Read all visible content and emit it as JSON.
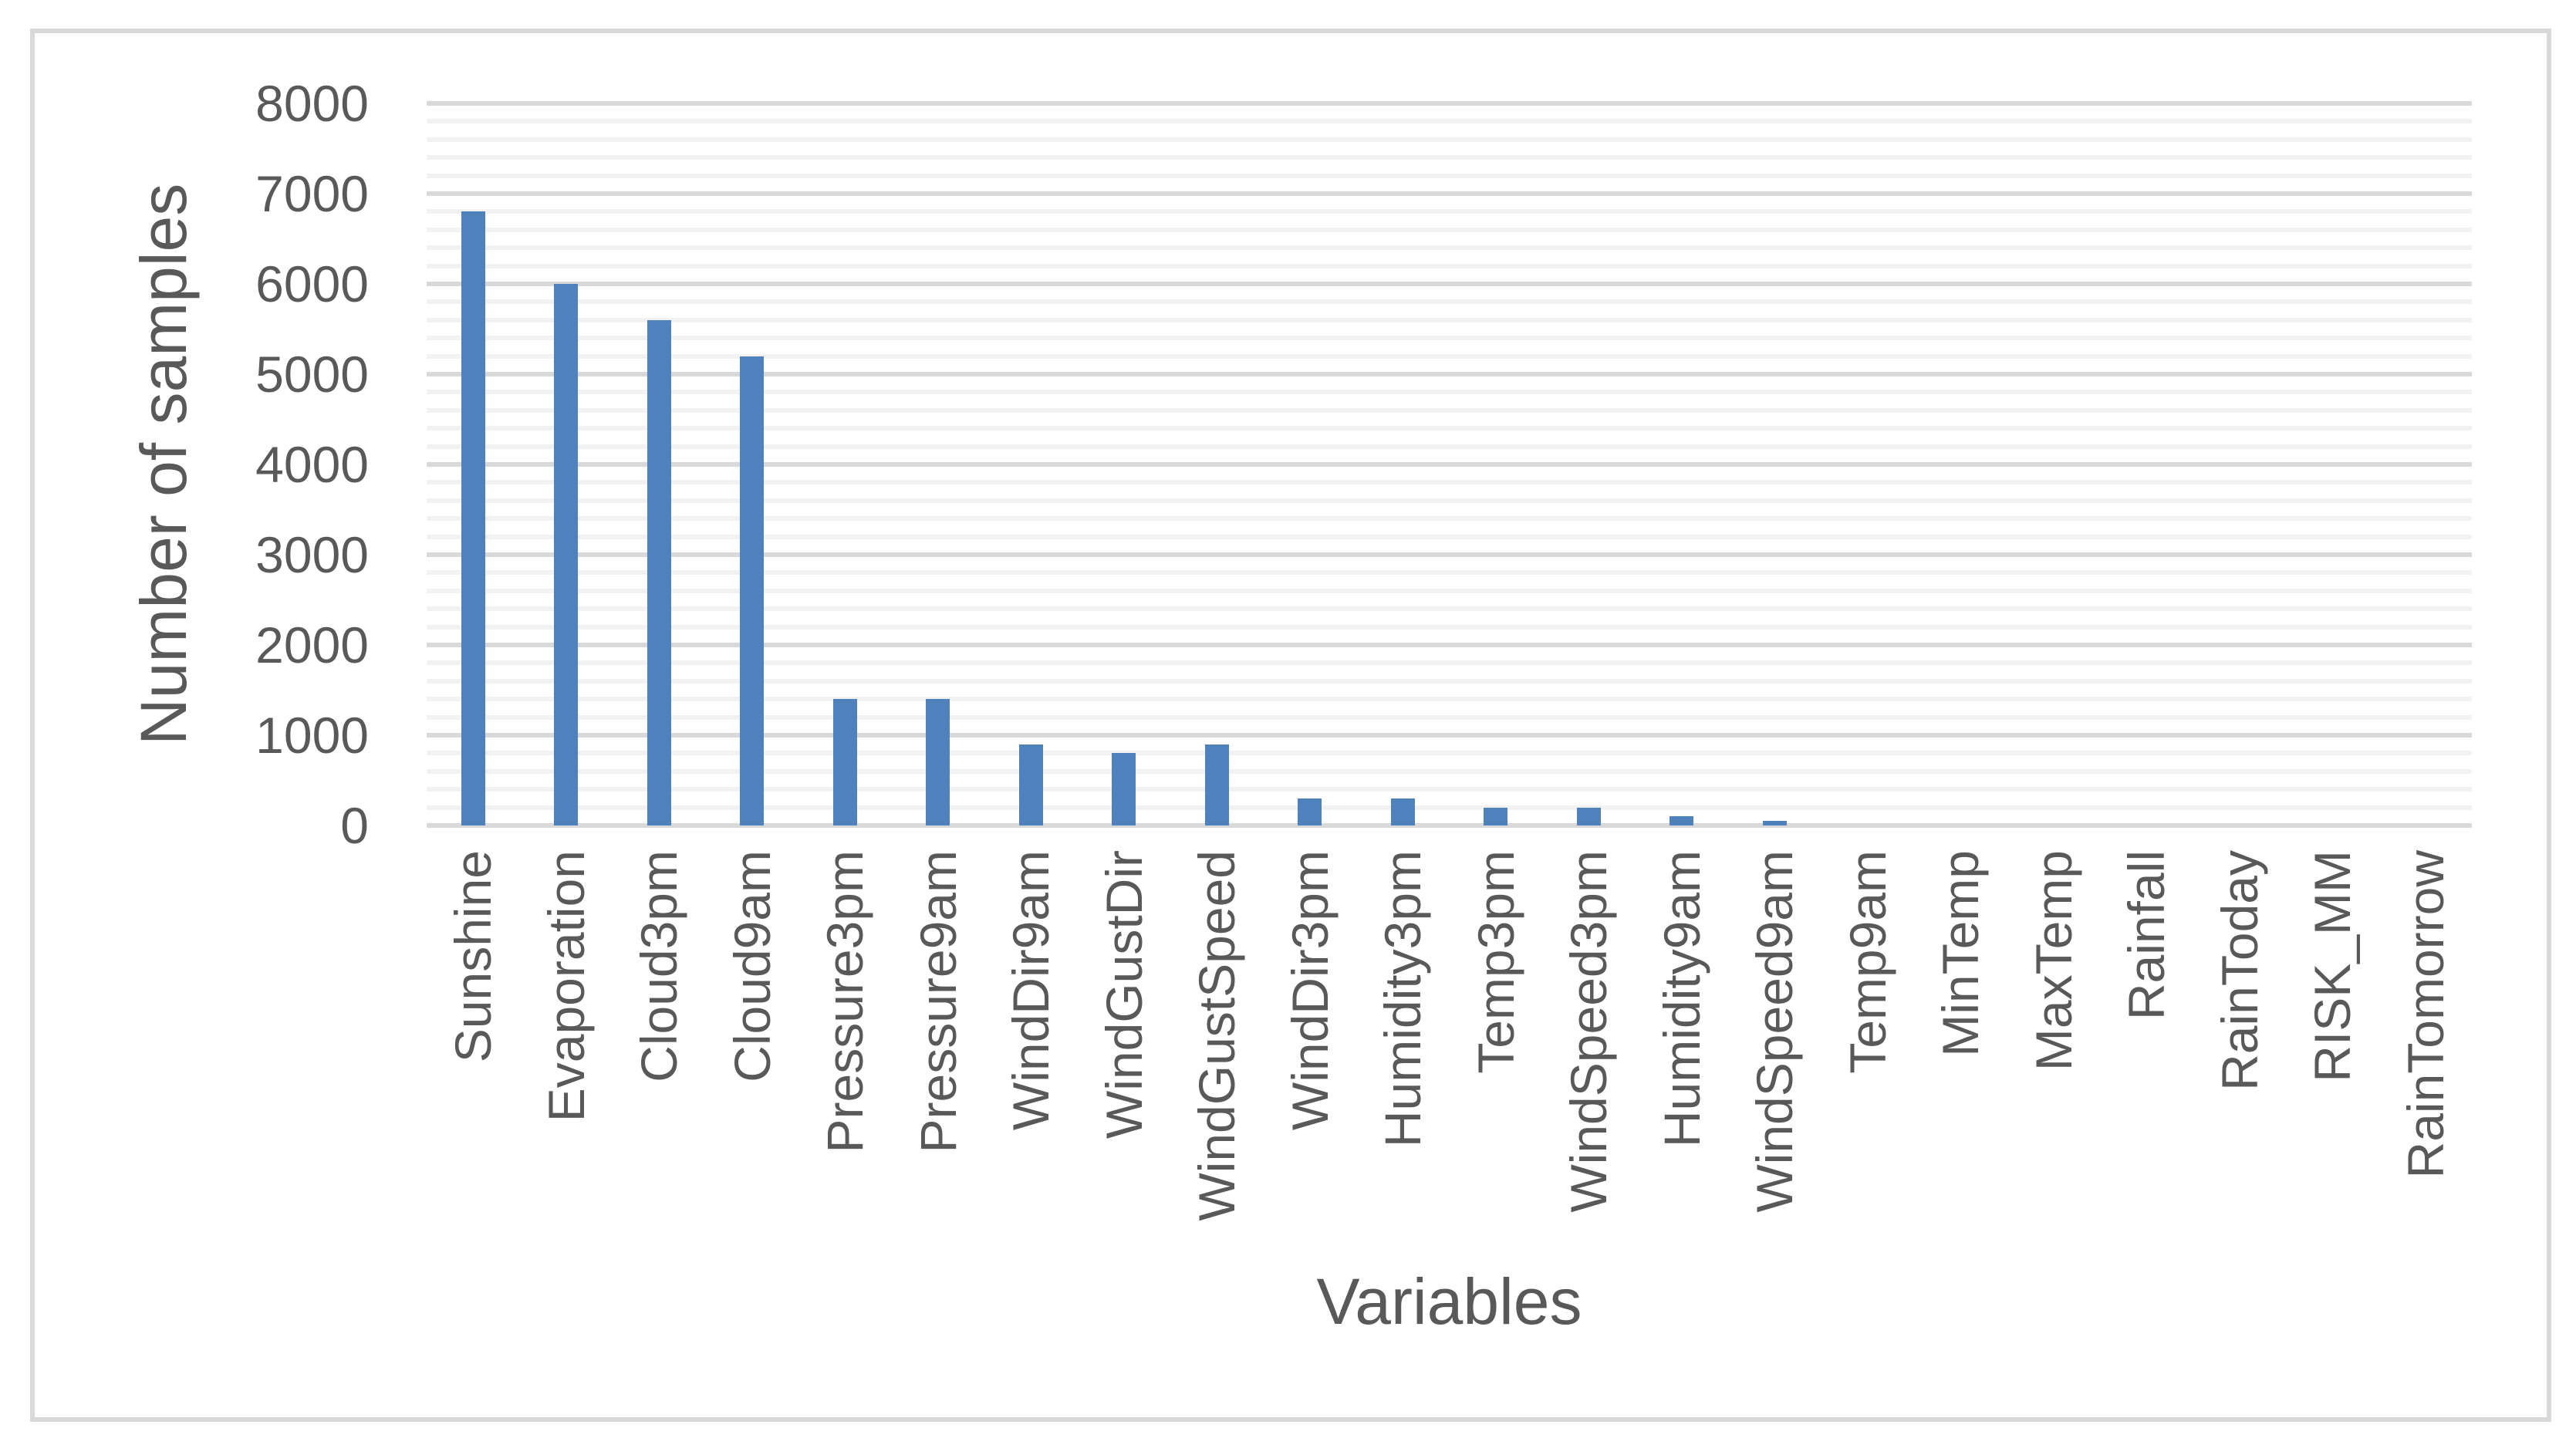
{
  "figure": {
    "background": "#FFFFFF",
    "border_color": "#D9D9D9"
  },
  "chart_data": {
    "type": "bar",
    "title": "",
    "xlabel": "Variables",
    "ylabel": "Number of samples",
    "categories": [
      "Sunshine",
      "Evaporation",
      "Cloud3pm",
      "Cloud9am",
      "Pressure3pm",
      "Pressure9am",
      "WindDir9am",
      "WindGustDir",
      "WindGustSpeed",
      "WindDir3pm",
      "Humidity3pm",
      "Temp3pm",
      "WindSpeed3pm",
      "Humidity9am",
      "WindSpeed9am",
      "Temp9am",
      "MinTemp",
      "MaxTemp",
      "Rainfall",
      "RainToday",
      "RISK_MM",
      "RainTomorrow"
    ],
    "values": [
      6800,
      6000,
      5600,
      5200,
      1400,
      1400,
      900,
      800,
      900,
      300,
      300,
      200,
      200,
      100,
      50,
      0,
      0,
      0,
      0,
      0,
      0,
      0
    ],
    "ylim": [
      0,
      8000
    ],
    "y_major_step": 1000,
    "y_minor_step": 200,
    "y_tick_labels": [
      "0",
      "1000",
      "2000",
      "3000",
      "4000",
      "5000",
      "6000",
      "7000",
      "8000"
    ],
    "grid": "on",
    "legend": "none",
    "bar_color": "#4F81BD",
    "major_grid_color": "#D9D9D9",
    "minor_grid_color": "#F2F2F2",
    "text_color": "#595959"
  }
}
